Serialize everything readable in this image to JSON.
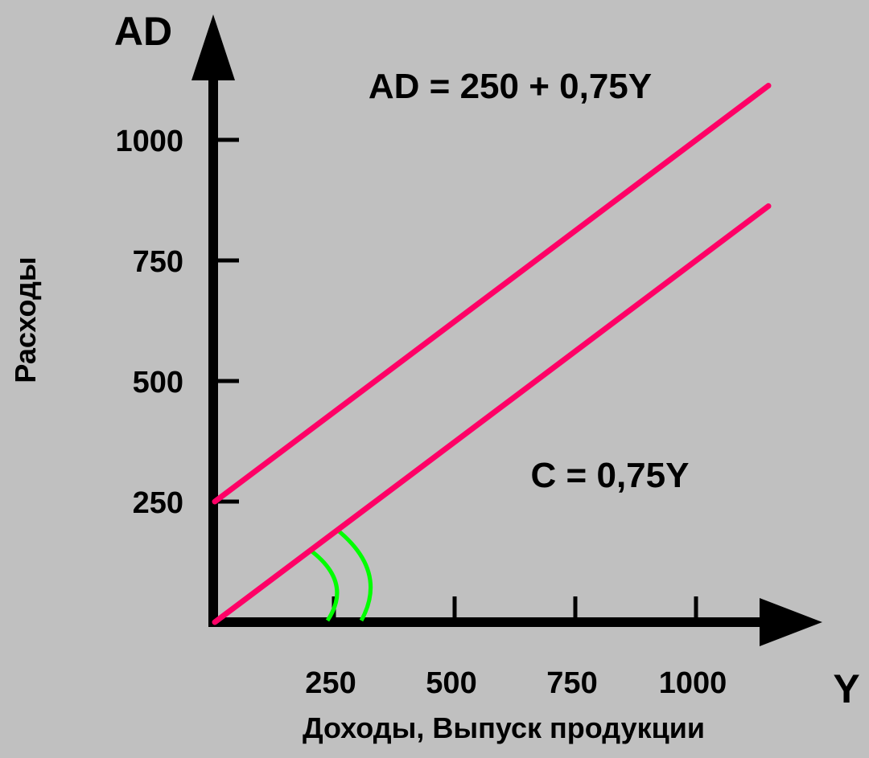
{
  "chart_data": {
    "type": "line",
    "title": "",
    "xlabel": "Доходы, Выпуск продукции",
    "ylabel": "Расходы",
    "x_axis_symbol": "Y",
    "y_axis_symbol": "AD",
    "xlim": [
      0,
      1150
    ],
    "ylim": [
      0,
      1100
    ],
    "x_ticks": [
      250,
      500,
      750,
      1000
    ],
    "y_ticks": [
      250,
      500,
      750,
      1000
    ],
    "x_tick_labels": [
      "250",
      "500",
      "750",
      "1000"
    ],
    "y_tick_labels": [
      "250",
      "500",
      "750",
      "1000"
    ],
    "grid": false,
    "legend": "none",
    "series": [
      {
        "label": "AD = 250 + 0,75Y",
        "intercept": 250,
        "slope": 0.75,
        "x_range": [
          0,
          1150
        ],
        "color": "#ff0066"
      },
      {
        "label": "C =  0,75Y",
        "intercept": 0,
        "slope": 0.75,
        "x_range": [
          0,
          1150
        ],
        "color": "#ff0066"
      }
    ],
    "annotations": [
      {
        "type": "angle-arc",
        "vertex_x": 0,
        "radius": 250,
        "color": "#00ff00"
      },
      {
        "type": "angle-arc",
        "vertex_x": 0,
        "radius": 320,
        "color": "#00ff00"
      }
    ]
  }
}
